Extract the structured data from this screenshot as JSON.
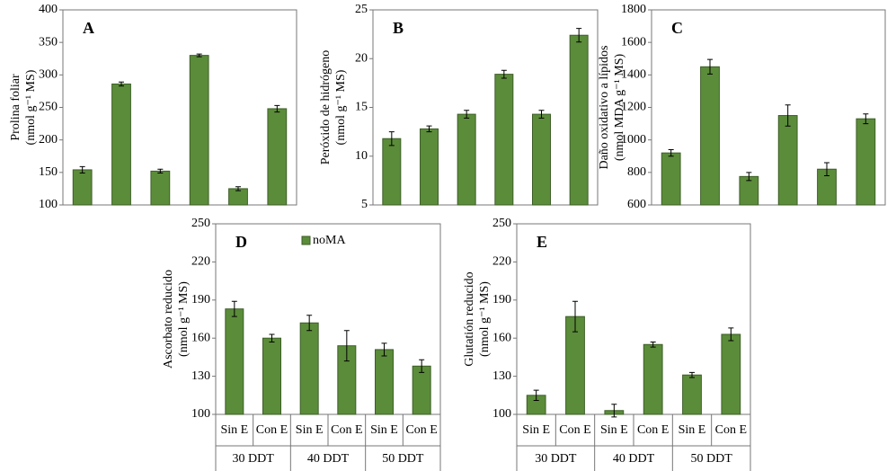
{
  "chart_data": [
    {
      "type": "bar",
      "title": "A",
      "y_label": [
        "Prolina foliar",
        "(nmol g⁻¹ MS)"
      ],
      "series": [
        {
          "color": "#5b8c3a",
          "values": [
            154,
            286,
            152,
            330,
            125,
            248
          ],
          "errors": [
            5,
            3,
            3,
            2,
            3,
            5
          ]
        }
      ],
      "ylim": [
        100,
        400
      ],
      "yticks": [
        100,
        150,
        200,
        250,
        300,
        350,
        400
      ]
    },
    {
      "type": "bar",
      "title": "B",
      "y_label": [
        "Peróxido de hidrógeno",
        "(nmol g⁻¹ MS)"
      ],
      "series": [
        {
          "color": "#5b8c3a",
          "values": [
            11.8,
            12.8,
            14.3,
            18.4,
            14.3,
            22.4
          ],
          "errors": [
            0.7,
            0.3,
            0.4,
            0.4,
            0.4,
            0.7
          ]
        }
      ],
      "ylim": [
        5,
        25
      ],
      "yticks": [
        5,
        10,
        15,
        20,
        25
      ]
    },
    {
      "type": "bar",
      "title": "C",
      "y_label": [
        "Daño oxidativo a lípidos",
        "(nmol MDA g⁻¹ MS)"
      ],
      "series": [
        {
          "color": "#5b8c3a",
          "values": [
            920,
            1450,
            775,
            1150,
            820,
            1130
          ],
          "errors": [
            20,
            45,
            25,
            65,
            40,
            30
          ]
        }
      ],
      "ylim": [
        600,
        1800
      ],
      "yticks": [
        600,
        800,
        1000,
        1200,
        1400,
        1600,
        1800
      ]
    },
    {
      "type": "bar",
      "title": "D",
      "y_label": [
        "Ascorbato reducido",
        "(nmol g⁻¹ MS)"
      ],
      "categories": [
        "Sin E",
        "Con E",
        "Sin E",
        "Con E",
        "Sin E",
        "Con E"
      ],
      "groups": [
        "30 DDT",
        "40 DDT",
        "50 DDT"
      ],
      "series": [
        {
          "name": "noMA",
          "color": "#5b8c3a",
          "values": [
            183,
            160,
            172,
            154,
            151,
            138
          ],
          "errors": [
            6,
            3,
            6,
            12,
            5,
            5
          ]
        }
      ],
      "ylim": [
        100,
        250
      ],
      "yticks": [
        100,
        130,
        160,
        190,
        220,
        250
      ]
    },
    {
      "type": "bar",
      "title": "E",
      "y_label": [
        "Glutatión reducido",
        "(nmol g⁻¹ MS)"
      ],
      "categories": [
        "Sin E",
        "Con E",
        "Sin E",
        "Con E",
        "Sin E",
        "Con E"
      ],
      "groups": [
        "30 DDT",
        "40 DDT",
        "50 DDT"
      ],
      "series": [
        {
          "color": "#5b8c3a",
          "values": [
            115,
            177,
            103,
            155,
            131,
            163
          ],
          "errors": [
            4,
            12,
            5,
            2,
            2,
            5
          ]
        }
      ],
      "ylim": [
        100,
        250
      ],
      "yticks": [
        100,
        130,
        160,
        190,
        220,
        250
      ]
    }
  ]
}
